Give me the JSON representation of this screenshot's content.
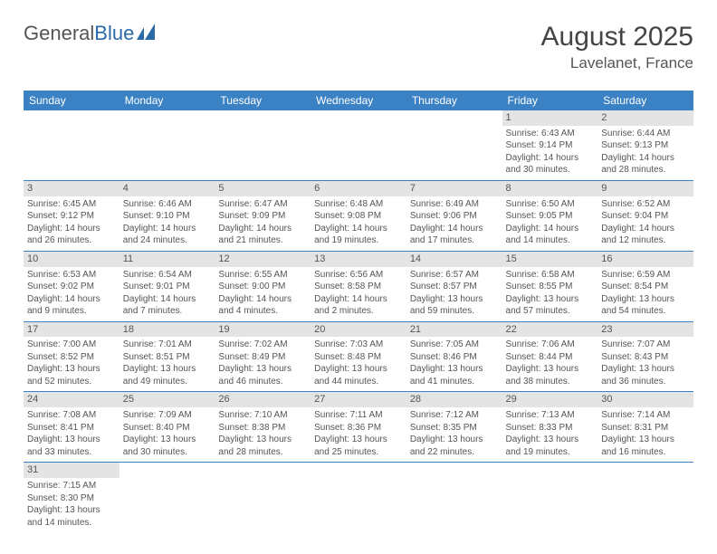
{
  "logo": {
    "general": "General",
    "blue": "Blue"
  },
  "title": "August 2025",
  "location": "Lavelanet, France",
  "header_bg": "#3b82c4",
  "daynum_bg": "#e4e4e4",
  "border_color": "#3b82c4",
  "days": [
    "Sunday",
    "Monday",
    "Tuesday",
    "Wednesday",
    "Thursday",
    "Friday",
    "Saturday"
  ],
  "weeks": [
    [
      null,
      null,
      null,
      null,
      null,
      {
        "n": "1",
        "sr": "Sunrise: 6:43 AM",
        "ss": "Sunset: 9:14 PM",
        "dl": "Daylight: 14 hours and 30 minutes."
      },
      {
        "n": "2",
        "sr": "Sunrise: 6:44 AM",
        "ss": "Sunset: 9:13 PM",
        "dl": "Daylight: 14 hours and 28 minutes."
      }
    ],
    [
      {
        "n": "3",
        "sr": "Sunrise: 6:45 AM",
        "ss": "Sunset: 9:12 PM",
        "dl": "Daylight: 14 hours and 26 minutes."
      },
      {
        "n": "4",
        "sr": "Sunrise: 6:46 AM",
        "ss": "Sunset: 9:10 PM",
        "dl": "Daylight: 14 hours and 24 minutes."
      },
      {
        "n": "5",
        "sr": "Sunrise: 6:47 AM",
        "ss": "Sunset: 9:09 PM",
        "dl": "Daylight: 14 hours and 21 minutes."
      },
      {
        "n": "6",
        "sr": "Sunrise: 6:48 AM",
        "ss": "Sunset: 9:08 PM",
        "dl": "Daylight: 14 hours and 19 minutes."
      },
      {
        "n": "7",
        "sr": "Sunrise: 6:49 AM",
        "ss": "Sunset: 9:06 PM",
        "dl": "Daylight: 14 hours and 17 minutes."
      },
      {
        "n": "8",
        "sr": "Sunrise: 6:50 AM",
        "ss": "Sunset: 9:05 PM",
        "dl": "Daylight: 14 hours and 14 minutes."
      },
      {
        "n": "9",
        "sr": "Sunrise: 6:52 AM",
        "ss": "Sunset: 9:04 PM",
        "dl": "Daylight: 14 hours and 12 minutes."
      }
    ],
    [
      {
        "n": "10",
        "sr": "Sunrise: 6:53 AM",
        "ss": "Sunset: 9:02 PM",
        "dl": "Daylight: 14 hours and 9 minutes."
      },
      {
        "n": "11",
        "sr": "Sunrise: 6:54 AM",
        "ss": "Sunset: 9:01 PM",
        "dl": "Daylight: 14 hours and 7 minutes."
      },
      {
        "n": "12",
        "sr": "Sunrise: 6:55 AM",
        "ss": "Sunset: 9:00 PM",
        "dl": "Daylight: 14 hours and 4 minutes."
      },
      {
        "n": "13",
        "sr": "Sunrise: 6:56 AM",
        "ss": "Sunset: 8:58 PM",
        "dl": "Daylight: 14 hours and 2 minutes."
      },
      {
        "n": "14",
        "sr": "Sunrise: 6:57 AM",
        "ss": "Sunset: 8:57 PM",
        "dl": "Daylight: 13 hours and 59 minutes."
      },
      {
        "n": "15",
        "sr": "Sunrise: 6:58 AM",
        "ss": "Sunset: 8:55 PM",
        "dl": "Daylight: 13 hours and 57 minutes."
      },
      {
        "n": "16",
        "sr": "Sunrise: 6:59 AM",
        "ss": "Sunset: 8:54 PM",
        "dl": "Daylight: 13 hours and 54 minutes."
      }
    ],
    [
      {
        "n": "17",
        "sr": "Sunrise: 7:00 AM",
        "ss": "Sunset: 8:52 PM",
        "dl": "Daylight: 13 hours and 52 minutes."
      },
      {
        "n": "18",
        "sr": "Sunrise: 7:01 AM",
        "ss": "Sunset: 8:51 PM",
        "dl": "Daylight: 13 hours and 49 minutes."
      },
      {
        "n": "19",
        "sr": "Sunrise: 7:02 AM",
        "ss": "Sunset: 8:49 PM",
        "dl": "Daylight: 13 hours and 46 minutes."
      },
      {
        "n": "20",
        "sr": "Sunrise: 7:03 AM",
        "ss": "Sunset: 8:48 PM",
        "dl": "Daylight: 13 hours and 44 minutes."
      },
      {
        "n": "21",
        "sr": "Sunrise: 7:05 AM",
        "ss": "Sunset: 8:46 PM",
        "dl": "Daylight: 13 hours and 41 minutes."
      },
      {
        "n": "22",
        "sr": "Sunrise: 7:06 AM",
        "ss": "Sunset: 8:44 PM",
        "dl": "Daylight: 13 hours and 38 minutes."
      },
      {
        "n": "23",
        "sr": "Sunrise: 7:07 AM",
        "ss": "Sunset: 8:43 PM",
        "dl": "Daylight: 13 hours and 36 minutes."
      }
    ],
    [
      {
        "n": "24",
        "sr": "Sunrise: 7:08 AM",
        "ss": "Sunset: 8:41 PM",
        "dl": "Daylight: 13 hours and 33 minutes."
      },
      {
        "n": "25",
        "sr": "Sunrise: 7:09 AM",
        "ss": "Sunset: 8:40 PM",
        "dl": "Daylight: 13 hours and 30 minutes."
      },
      {
        "n": "26",
        "sr": "Sunrise: 7:10 AM",
        "ss": "Sunset: 8:38 PM",
        "dl": "Daylight: 13 hours and 28 minutes."
      },
      {
        "n": "27",
        "sr": "Sunrise: 7:11 AM",
        "ss": "Sunset: 8:36 PM",
        "dl": "Daylight: 13 hours and 25 minutes."
      },
      {
        "n": "28",
        "sr": "Sunrise: 7:12 AM",
        "ss": "Sunset: 8:35 PM",
        "dl": "Daylight: 13 hours and 22 minutes."
      },
      {
        "n": "29",
        "sr": "Sunrise: 7:13 AM",
        "ss": "Sunset: 8:33 PM",
        "dl": "Daylight: 13 hours and 19 minutes."
      },
      {
        "n": "30",
        "sr": "Sunrise: 7:14 AM",
        "ss": "Sunset: 8:31 PM",
        "dl": "Daylight: 13 hours and 16 minutes."
      }
    ],
    [
      {
        "n": "31",
        "sr": "Sunrise: 7:15 AM",
        "ss": "Sunset: 8:30 PM",
        "dl": "Daylight: 13 hours and 14 minutes."
      },
      null,
      null,
      null,
      null,
      null,
      null
    ]
  ]
}
